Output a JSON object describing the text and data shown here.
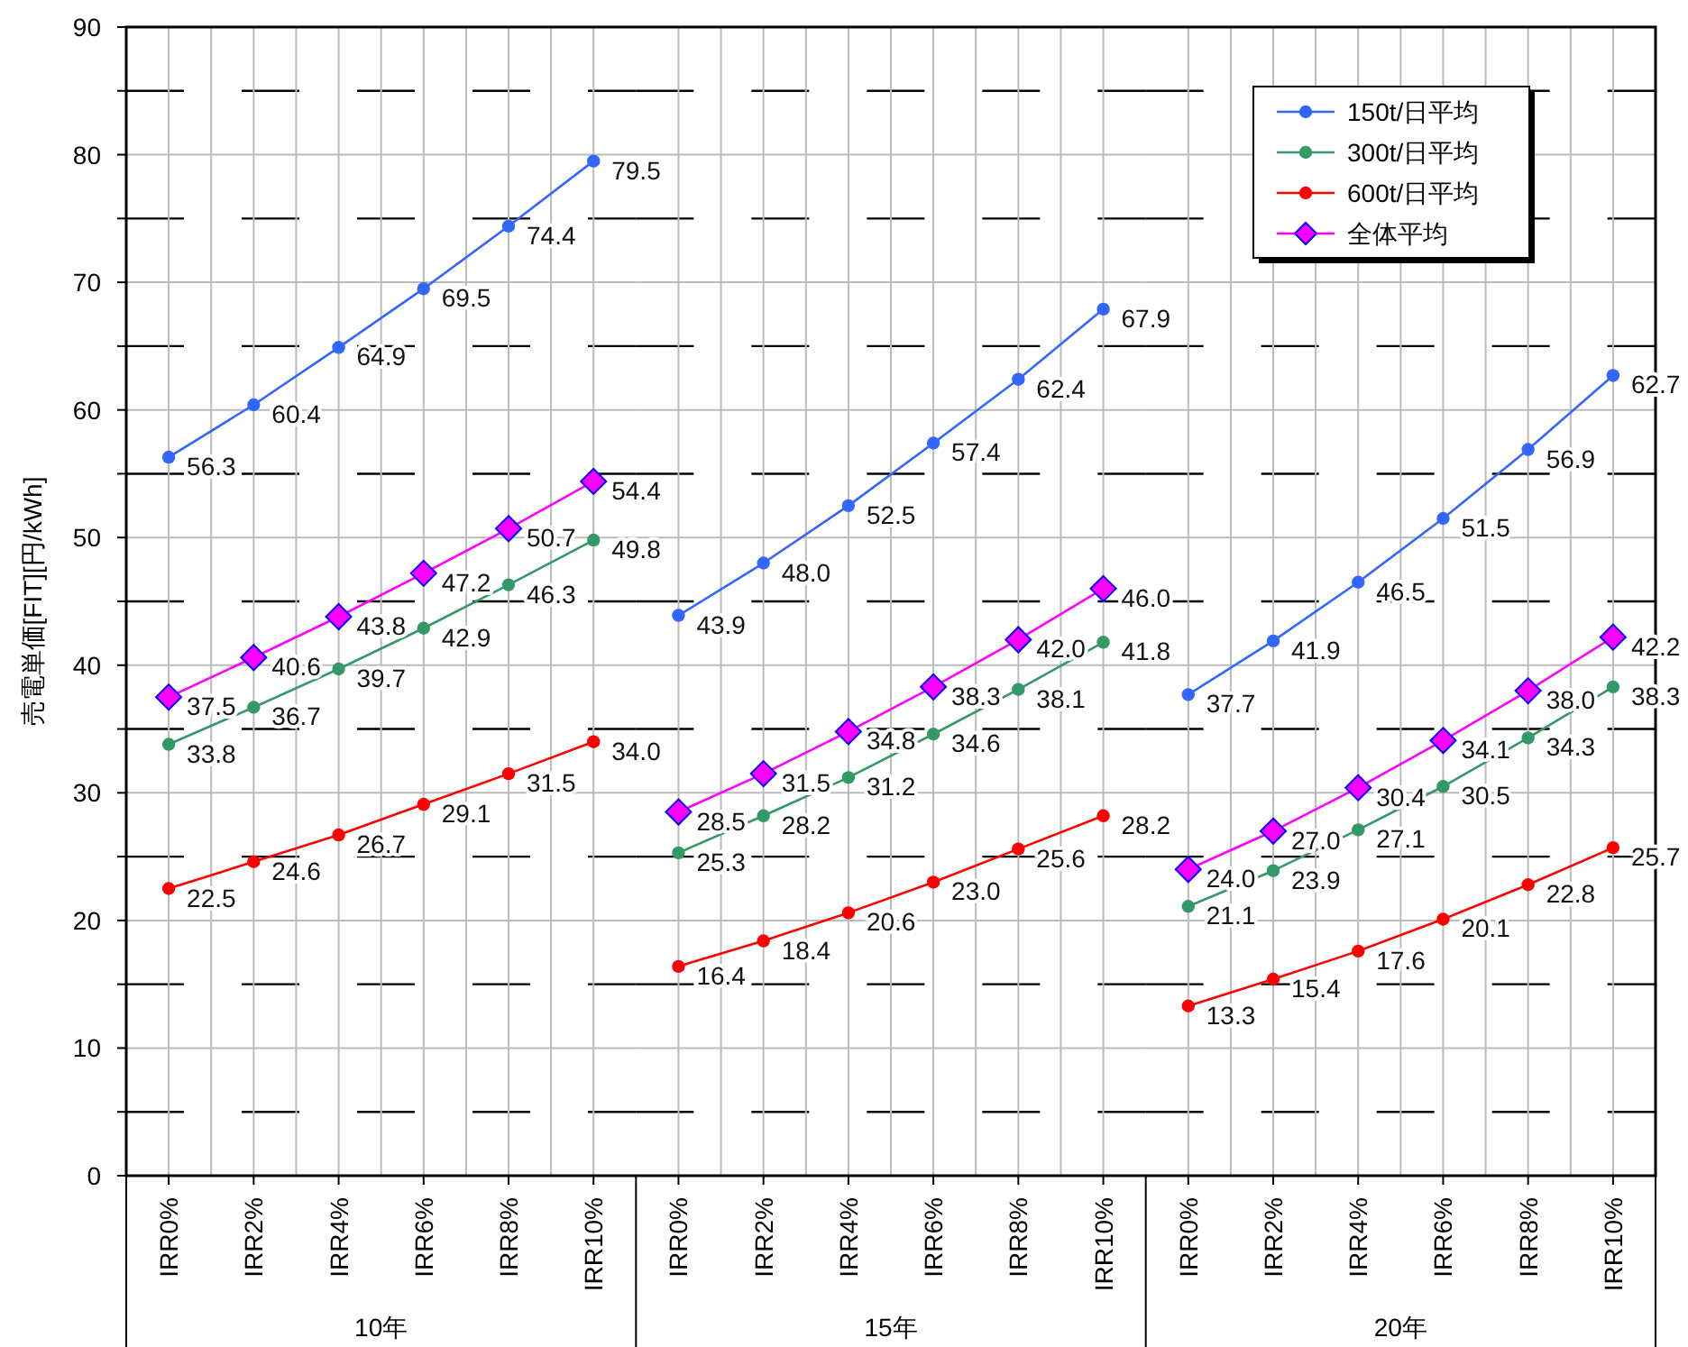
{
  "chart_data": [
    {
      "type": "line",
      "xlabel": "10年",
      "ylabel": "売電単価[FIT][円/kWh]",
      "categories": [
        "IRR0%",
        "IRR2%",
        "IRR4%",
        "IRR6%",
        "IRR8%",
        "IRR10%"
      ],
      "ylim": [
        0,
        90
      ],
      "yticks": [
        0,
        {
          "value": 5,
          "label": null
        },
        10,
        {
          "value": 15,
          "label": null
        },
        20,
        {
          "value": 25,
          "label": null
        },
        30,
        {
          "value": 35,
          "label": null
        },
        40,
        {
          "value": 45,
          "label": null
        },
        50,
        {
          "value": 55,
          "label": null
        },
        60,
        {
          "value": 65,
          "label": null
        },
        70,
        {
          "value": 75,
          "label": null
        },
        80,
        {
          "value": 85,
          "label": null
        },
        90
      ],
      "grid": true,
      "series": [
        {
          "color": "#3366ff",
          "marker": "circle",
          "values": [
            56.3,
            60.4,
            64.9,
            69.5,
            74.4,
            79.5
          ],
          "value_labels": [
            "56.3",
            "60.4",
            "64.9",
            "69.5",
            "74.4",
            "79.5"
          ]
        },
        {
          "color": "#339966",
          "marker": "circle",
          "values": [
            33.8,
            36.7,
            39.7,
            42.9,
            46.3,
            49.8
          ],
          "value_labels": [
            "33.8",
            "36.7",
            "39.7",
            "42.9",
            "46.3",
            "49.8"
          ]
        },
        {
          "color": "#ff0000",
          "marker": "circle",
          "values": [
            22.5,
            24.6,
            26.7,
            29.1,
            31.5,
            34.0
          ],
          "value_labels": [
            "22.5",
            "24.6",
            "26.7",
            "29.1",
            "31.5",
            "34.0"
          ]
        },
        {
          "color": "#ff00ff",
          "marker": "diamond",
          "values": [
            37.5,
            40.6,
            43.8,
            47.2,
            50.7,
            54.4
          ],
          "value_labels": [
            "37.5",
            "40.6",
            "43.8",
            "47.2",
            "50.7",
            "54.4"
          ]
        }
      ]
    },
    {
      "type": "line",
      "xlabel": "15年",
      "categories": [
        "IRR0%",
        "IRR2%",
        "IRR4%",
        "IRR6%",
        "IRR8%",
        "IRR10%"
      ],
      "ylim": [
        0,
        90
      ],
      "tick_labels": "x",
      "grid": true,
      "series": [
        {
          "color": "#3366ff",
          "marker": "circle",
          "values": [
            43.9,
            48.0,
            52.5,
            57.4,
            62.4,
            67.9
          ],
          "value_labels": [
            "43.9",
            "48.0",
            "52.5",
            "57.4",
            "62.4",
            "67.9"
          ]
        },
        {
          "color": "#339966",
          "marker": "circle",
          "values": [
            25.3,
            28.2,
            31.2,
            34.6,
            38.1,
            41.8
          ],
          "value_labels": [
            "25.3",
            "28.2",
            "31.2",
            "34.6",
            "38.1",
            "41.8"
          ]
        },
        {
          "color": "#ff0000",
          "marker": "circle",
          "values": [
            16.4,
            18.4,
            20.6,
            23.0,
            25.6,
            28.2
          ],
          "value_labels": [
            "16.4",
            "18.4",
            "20.6",
            "23.0",
            "25.6",
            "28.2"
          ]
        },
        {
          "color": "#ff00ff",
          "marker": "diamond",
          "values": [
            28.5,
            31.5,
            34.8,
            38.3,
            42.0,
            46.0
          ],
          "value_labels": [
            "28.5",
            "31.5",
            "34.8",
            "38.3",
            "42.0",
            "46.0"
          ]
        }
      ]
    },
    {
      "type": "line",
      "xlabel": "20年",
      "categories": [
        "IRR0%",
        "IRR2%",
        "IRR4%",
        "IRR6%",
        "IRR8%",
        "IRR10%"
      ],
      "ylim": [
        0,
        90
      ],
      "tick_labels": "x",
      "grid": true,
      "legend": "top right",
      "series": [
        {
          "name": "150t/日平均",
          "color": "#3366ff",
          "marker": "circle",
          "values": [
            37.7,
            41.9,
            46.5,
            51.5,
            56.9,
            62.7
          ],
          "value_labels": [
            "37.7",
            "41.9",
            "46.5",
            "51.5",
            "56.9",
            "62.7"
          ]
        },
        {
          "name": "300t/日平均",
          "color": "#339966",
          "marker": "circle",
          "values": [
            21.1,
            23.9,
            27.1,
            30.5,
            34.3,
            38.3
          ],
          "value_labels": [
            "21.1",
            "23.9",
            "27.1",
            "30.5",
            "34.3",
            "38.3"
          ]
        },
        {
          "name": "600t/日平均",
          "color": "#ff0000",
          "marker": "circle",
          "values": [
            13.3,
            15.4,
            17.6,
            20.1,
            22.8,
            25.7
          ],
          "value_labels": [
            "13.3",
            "15.4",
            "17.6",
            "20.1",
            "22.8",
            "25.7"
          ]
        },
        {
          "name": "全体平均",
          "color": "#ff00ff",
          "marker": "diamond",
          "values": [
            24.0,
            27.0,
            30.4,
            34.1,
            38.0,
            42.2
          ],
          "value_labels": [
            "24.0",
            "27.0",
            "30.4",
            "34.1",
            "38.0",
            "42.2"
          ]
        }
      ]
    }
  ]
}
